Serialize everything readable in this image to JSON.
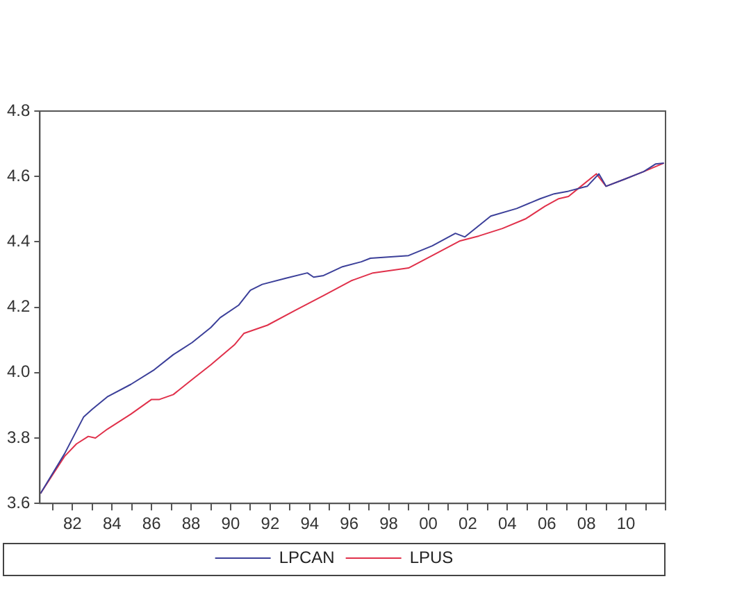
{
  "chart_data": {
    "type": "line",
    "xlim": [
      1980.35,
      2012.0
    ],
    "xticks": [
      {
        "value": 1981,
        "label": null
      },
      {
        "value": 1982,
        "label": "82"
      },
      {
        "value": 1983,
        "label": null
      },
      {
        "value": 1984,
        "label": "84"
      },
      {
        "value": 1985,
        "label": null
      },
      {
        "value": 1986,
        "label": "86"
      },
      {
        "value": 1987,
        "label": null
      },
      {
        "value": 1988,
        "label": "88"
      },
      {
        "value": 1989,
        "label": null
      },
      {
        "value": 1990,
        "label": "90"
      },
      {
        "value": 1991,
        "label": null
      },
      {
        "value": 1992,
        "label": "92"
      },
      {
        "value": 1993,
        "label": null
      },
      {
        "value": 1994,
        "label": "94"
      },
      {
        "value": 1995,
        "label": null
      },
      {
        "value": 1996,
        "label": "96"
      },
      {
        "value": 1997,
        "label": null
      },
      {
        "value": 1998,
        "label": "98"
      },
      {
        "value": 1999,
        "label": null
      },
      {
        "value": 2000,
        "label": "00"
      },
      {
        "value": 2001,
        "label": null
      },
      {
        "value": 2002,
        "label": "02"
      },
      {
        "value": 2003,
        "label": null
      },
      {
        "value": 2004,
        "label": "04"
      },
      {
        "value": 2005,
        "label": null
      },
      {
        "value": 2006,
        "label": "06"
      },
      {
        "value": 2007,
        "label": null
      },
      {
        "value": 2008,
        "label": "08"
      },
      {
        "value": 2009,
        "label": null
      },
      {
        "value": 2010,
        "label": "10"
      },
      {
        "value": 2011,
        "label": null
      },
      {
        "value": 2012,
        "label": null
      }
    ],
    "ylim": [
      3.6,
      4.8
    ],
    "yticks": [
      {
        "value": 3.6,
        "label": "3.6"
      },
      {
        "value": 3.8,
        "label": "3.8"
      },
      {
        "value": 4.0,
        "label": "4.0"
      },
      {
        "value": 4.2,
        "label": "4.2"
      },
      {
        "value": 4.4,
        "label": "4.4"
      },
      {
        "value": 4.6,
        "label": "4.6"
      },
      {
        "value": 4.8,
        "label": "4.8"
      }
    ],
    "grid": false,
    "legend": "bottom",
    "series": [
      {
        "name": "LPCAN",
        "color": "#3b3f99",
        "x": [
          1980.38,
          1981.6,
          1982.57,
          1983.0,
          1983.76,
          1984.95,
          1986.14,
          1987.1,
          1988.05,
          1989.0,
          1989.47,
          1990.4,
          1991.0,
          1991.6,
          1992.8,
          1993.88,
          1994.2,
          1994.7,
          1995.66,
          1996.61,
          1997.07,
          1999.0,
          2000.2,
          2001.37,
          2001.85,
          2003.16,
          2004.47,
          2005.66,
          2006.37,
          2007.09,
          2008.04,
          2008.63,
          2008.99,
          2009.94,
          2010.9,
          2011.49,
          2011.92
        ],
        "values": [
          3.63,
          3.752,
          3.865,
          3.888,
          3.926,
          3.964,
          4.009,
          4.055,
          4.092,
          4.138,
          4.168,
          4.206,
          4.252,
          4.27,
          4.289,
          4.305,
          4.292,
          4.297,
          4.324,
          4.339,
          4.35,
          4.358,
          4.388,
          4.426,
          4.415,
          4.479,
          4.502,
          4.532,
          4.547,
          4.555,
          4.57,
          4.608,
          4.57,
          4.592,
          4.615,
          4.638,
          4.641
        ]
      },
      {
        "name": "LPUS",
        "color": "#e0304a",
        "x": [
          1980.38,
          1981.6,
          1982.2,
          1982.8,
          1983.16,
          1983.76,
          1984.95,
          1986.0,
          1986.4,
          1987.1,
          1988.05,
          1989.0,
          1990.19,
          1990.67,
          1991.86,
          1993.28,
          1994.71,
          1996.14,
          1997.2,
          1999.0,
          2000.2,
          2001.61,
          2002.56,
          2003.75,
          2004.94,
          2005.9,
          2006.6,
          2007.09,
          2007.56,
          2008.5,
          2008.99,
          2009.94,
          2010.9,
          2011.92
        ],
        "values": [
          3.63,
          3.744,
          3.782,
          3.805,
          3.8,
          3.827,
          3.873,
          3.918,
          3.918,
          3.933,
          3.979,
          4.024,
          4.085,
          4.12,
          4.145,
          4.191,
          4.236,
          4.282,
          4.305,
          4.32,
          4.358,
          4.403,
          4.418,
          4.441,
          4.471,
          4.509,
          4.532,
          4.539,
          4.562,
          4.608,
          4.57,
          4.592,
          4.615,
          4.641
        ]
      }
    ]
  }
}
